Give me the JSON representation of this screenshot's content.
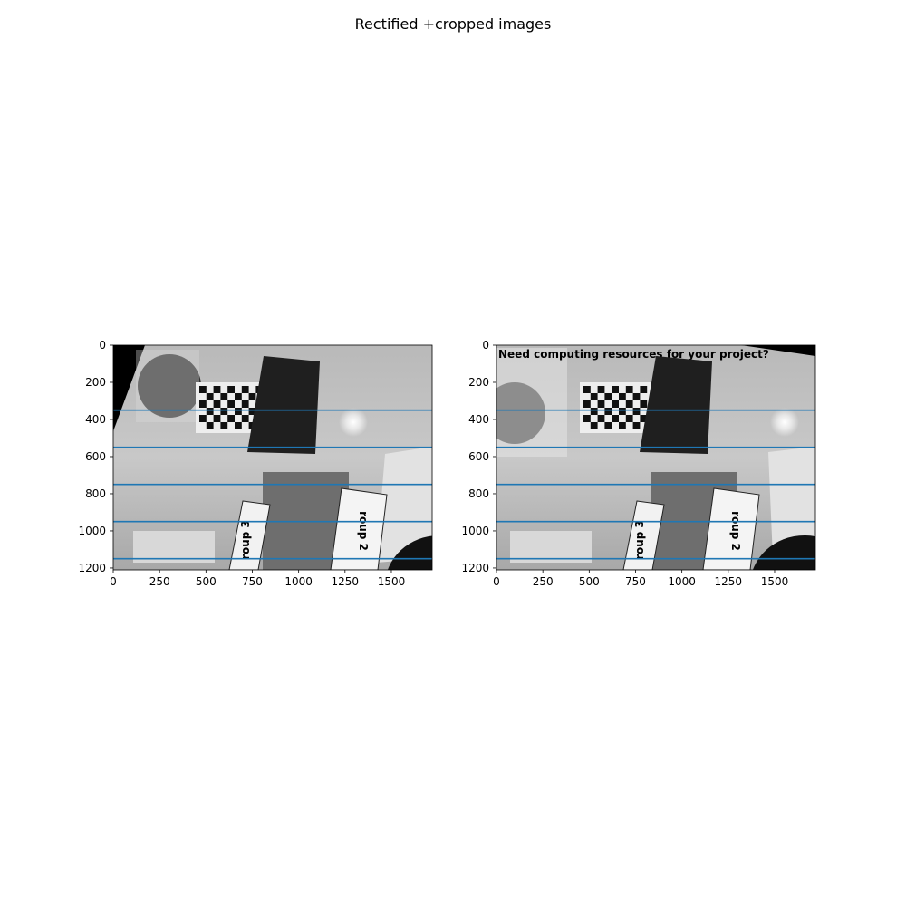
{
  "figure": {
    "title": "Rectified +cropped images"
  },
  "chart_data": [
    {
      "type": "image",
      "panel": "left",
      "xlim": [
        0,
        1720
      ],
      "ylim": [
        1210,
        0
      ],
      "xticks": [
        0,
        250,
        500,
        750,
        1000,
        1250,
        1500
      ],
      "yticks": [
        0,
        200,
        400,
        600,
        800,
        1000,
        1200
      ],
      "line_color": "#1f77b4",
      "epipolar_lines_y": [
        350,
        550,
        750,
        950,
        1150
      ],
      "visible_labels": [
        "roup 3",
        "roup 2"
      ]
    },
    {
      "type": "image",
      "panel": "right",
      "xlim": [
        0,
        1720
      ],
      "ylim": [
        1210,
        0
      ],
      "xticks": [
        0,
        250,
        500,
        750,
        1000,
        1250,
        1500
      ],
      "yticks": [
        0,
        200,
        400,
        600,
        800,
        1000,
        1200
      ],
      "line_color": "#1f77b4",
      "epipolar_lines_y": [
        350,
        550,
        750,
        950,
        1150
      ],
      "visible_labels": [
        "Need computing resources for your project?",
        "roup 3",
        "roup 2"
      ]
    }
  ]
}
